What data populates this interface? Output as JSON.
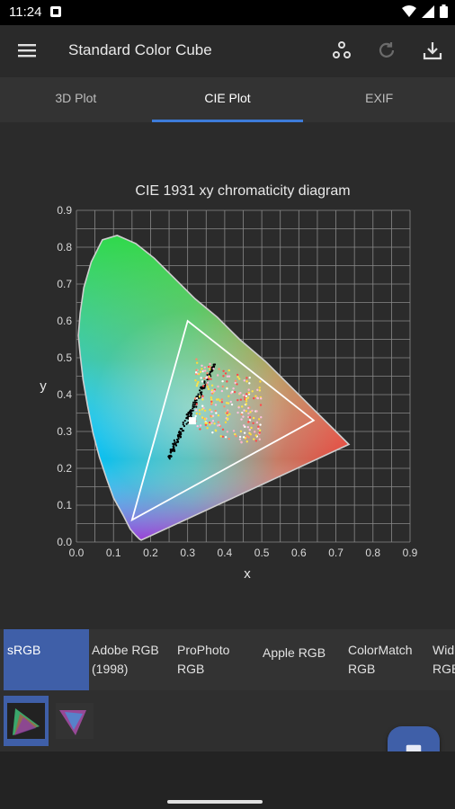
{
  "status_bar": {
    "time": "11:24"
  },
  "app_bar": {
    "title": "Standard Color Cube"
  },
  "tabs": [
    {
      "label": "3D Plot",
      "active": false
    },
    {
      "label": "CIE Plot",
      "active": true
    },
    {
      "label": "EXIF",
      "active": false
    }
  ],
  "chart_data": {
    "type": "scatter",
    "title": "CIE 1931 xy chromaticity diagram",
    "xlabel": "x",
    "ylabel": "y",
    "xlim": [
      0.0,
      0.9
    ],
    "ylim": [
      0.0,
      0.9
    ],
    "grid": true,
    "x_ticks": [
      "0.0",
      "0.1",
      "0.2",
      "0.3",
      "0.4",
      "0.5",
      "0.6",
      "0.7",
      "0.8",
      "0.9"
    ],
    "y_ticks": [
      "0.0",
      "0.1",
      "0.2",
      "0.3",
      "0.4",
      "0.5",
      "0.6",
      "0.7",
      "0.8",
      "0.9"
    ],
    "spectral_locus": [
      [
        0.175,
        0.005
      ],
      [
        0.17,
        0.008
      ],
      [
        0.16,
        0.018
      ],
      [
        0.145,
        0.035
      ],
      [
        0.125,
        0.075
      ],
      [
        0.1,
        0.12
      ],
      [
        0.082,
        0.17
      ],
      [
        0.062,
        0.23
      ],
      [
        0.045,
        0.295
      ],
      [
        0.03,
        0.37
      ],
      [
        0.018,
        0.44
      ],
      [
        0.01,
        0.51
      ],
      [
        0.005,
        0.56
      ],
      [
        0.01,
        0.62
      ],
      [
        0.02,
        0.69
      ],
      [
        0.04,
        0.76
      ],
      [
        0.07,
        0.82
      ],
      [
        0.11,
        0.832
      ],
      [
        0.16,
        0.81
      ],
      [
        0.21,
        0.77
      ],
      [
        0.26,
        0.72
      ],
      [
        0.32,
        0.66
      ],
      [
        0.38,
        0.61
      ],
      [
        0.44,
        0.55
      ],
      [
        0.51,
        0.49
      ],
      [
        0.58,
        0.42
      ],
      [
        0.64,
        0.36
      ],
      [
        0.7,
        0.3
      ],
      [
        0.735,
        0.265
      ]
    ],
    "gamut_triangle": [
      [
        0.64,
        0.33
      ],
      [
        0.3,
        0.6
      ],
      [
        0.15,
        0.06
      ]
    ],
    "white_point": [
      0.3127,
      0.329
    ],
    "colors": {
      "ink": "#ffffff",
      "grid": "#8a8a8a",
      "tick": "#d8d8d8",
      "locus": "#cfcfcf"
    }
  },
  "gamut_options": [
    {
      "label": "sRGB",
      "selected": true
    },
    {
      "label": "Adobe RGB\n(1998)",
      "selected": false
    },
    {
      "label": "ProPhoto\nRGB",
      "selected": false
    },
    {
      "label": "Apple RGB",
      "selected": false
    },
    {
      "label": "ColorMatch\nRGB",
      "selected": false
    },
    {
      "label": "Wid\nRGB",
      "selected": false
    }
  ],
  "thumbnails": [
    {
      "selected": true
    },
    {
      "selected": false
    }
  ],
  "icons": {
    "menu": "menu-icon",
    "hierarchy": "hierarchy-icon",
    "refresh": "refresh-icon",
    "download": "download-icon",
    "gallery": "image-icon"
  },
  "colors": {
    "accent": "#3f5fa8",
    "tab_indicator": "#3d7bd9",
    "background": "#2a2a2a"
  }
}
